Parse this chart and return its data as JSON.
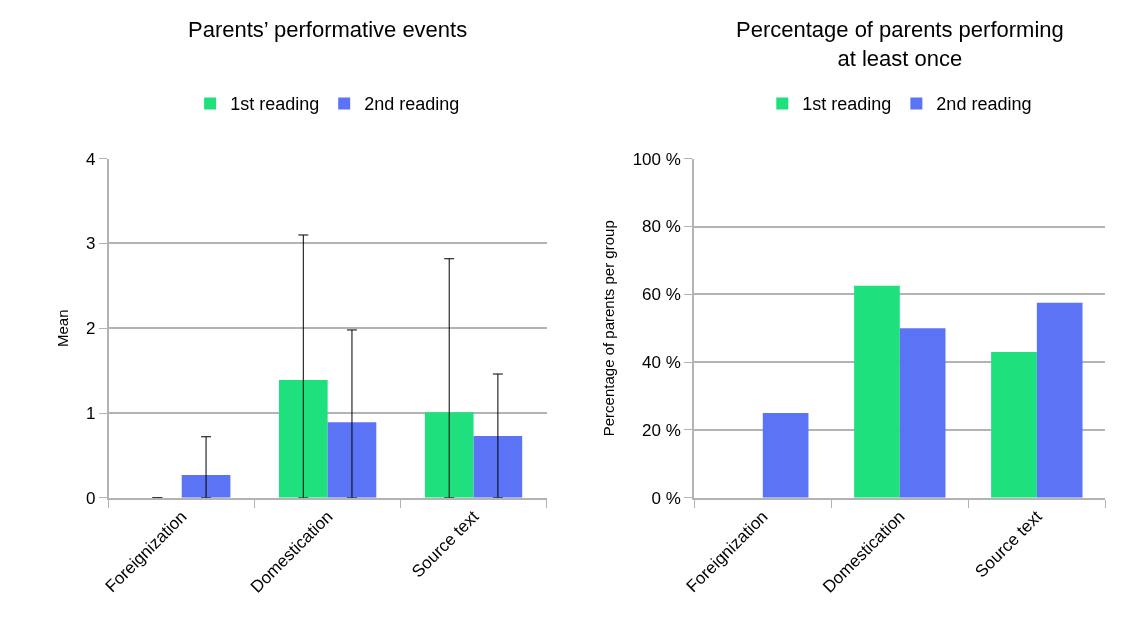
{
  "chart_data": [
    {
      "type": "bar",
      "title": "Parents’ performative events",
      "ylabel": "Mean",
      "categories": [
        "Foreignization",
        "Domestication",
        "Source text"
      ],
      "series": [
        {
          "name": "1st reading",
          "color": "#1ee07c",
          "values": [
            0,
            1.39,
            1.01
          ],
          "errors": [
            [
              0,
              0
            ],
            [
              0,
              3.1
            ],
            [
              0,
              2.82
            ]
          ]
        },
        {
          "name": "2nd reading",
          "color": "#5b74f6",
          "values": [
            0.27,
            0.89,
            0.73
          ],
          "errors": [
            [
              0,
              0.72
            ],
            [
              0,
              1.98
            ],
            [
              0,
              1.46
            ]
          ]
        }
      ],
      "ylim": [
        0,
        4
      ],
      "yticks": [
        0,
        1,
        2,
        3,
        4
      ],
      "grid": "y",
      "legend": "top"
    },
    {
      "type": "bar",
      "title": "Percentage of parents performing\nat least once",
      "ylabel": "Percentage of parents per group",
      "categories": [
        "Foreignization",
        "Domestication",
        "Source text"
      ],
      "series": [
        {
          "name": "1st reading",
          "color": "#1ee07c",
          "values": [
            0,
            62.5,
            43
          ]
        },
        {
          "name": "2nd reading",
          "color": "#5b74f6",
          "values": [
            25,
            50,
            57.5
          ]
        }
      ],
      "ylim": [
        0,
        100
      ],
      "yticks": [
        {
          "value": 0,
          "label": "0 %"
        },
        {
          "value": 20,
          "label": "20 %"
        },
        {
          "value": 40,
          "label": "40 %"
        },
        {
          "value": 60,
          "label": "60 %"
        },
        {
          "value": 80,
          "label": "80 %"
        },
        {
          "value": 100,
          "label": "100 %"
        }
      ],
      "grid": "y",
      "legend": "top"
    }
  ]
}
